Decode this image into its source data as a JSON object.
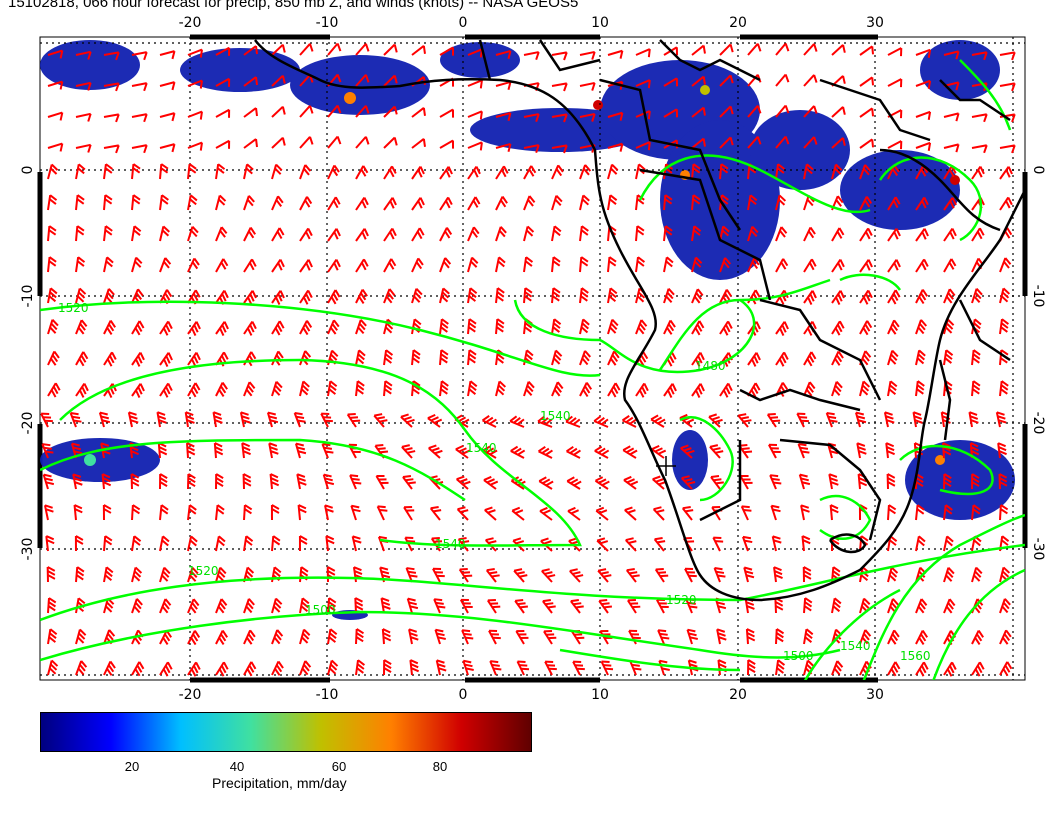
{
  "title": "15102818, 066 hour forecast for precip, 850 mb Z, and winds (knots) -- NASA GEOS5",
  "map": {
    "lon_ticks": [
      "-20",
      "-10",
      "0",
      "10",
      "20",
      "30"
    ],
    "lat_ticks": [
      "0",
      "-10",
      "-20",
      "-30"
    ],
    "contour_labels": [
      "1520",
      "1480",
      "1540",
      "1520",
      "1500",
      "1520",
      "1540",
      "1540",
      "1500",
      "1560",
      "1540"
    ],
    "colors": {
      "wind_barbs": "#ff0000",
      "contours": "#00ff00",
      "coastlines": "#000000"
    }
  },
  "colorbar": {
    "label": "Precipitation, mm/day",
    "ticks": [
      "20",
      "40",
      "60",
      "80"
    ],
    "range": [
      0,
      100
    ],
    "colors": [
      "#00007f",
      "#0000ff",
      "#00bfff",
      "#40e0a0",
      "#c0c000",
      "#ff8000",
      "#d00000",
      "#600000"
    ]
  }
}
